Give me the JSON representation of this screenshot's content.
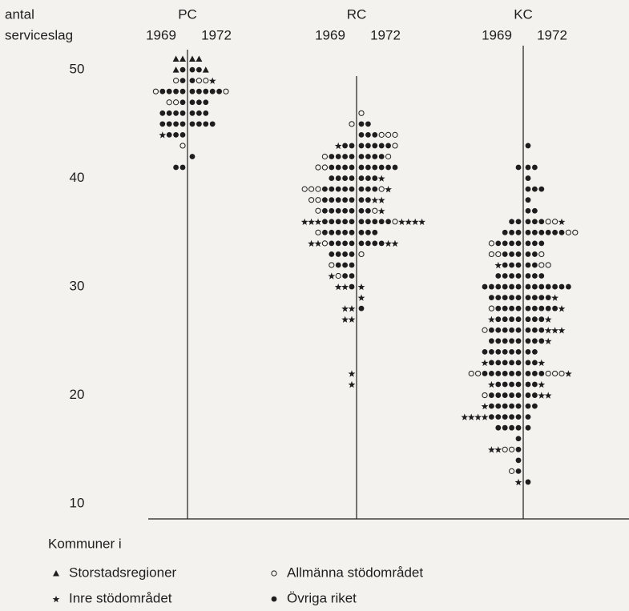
{
  "chart_data": {
    "type": "dotplot",
    "ylabel": [
      "antal",
      "serviceslag"
    ],
    "ylim": [
      8.6,
      52
    ],
    "yticks": [
      10,
      20,
      30,
      40,
      50
    ],
    "legend_title": "Kommuner i",
    "categories": [
      "Storstadsregioner",
      "Inre stödområdet",
      "Allmänna stödområdet",
      "Övriga riket"
    ],
    "color": "#1e1e1e",
    "panels": [
      {
        "name": "PC",
        "years": [
          "1969",
          "1972"
        ],
        "sides": [
          [
            [
              51,
              2,
              0,
              0,
              0
            ],
            [
              50,
              1,
              0,
              0,
              1
            ],
            [
              49,
              0,
              0,
              1,
              1
            ],
            [
              48,
              0,
              0,
              1,
              4
            ],
            [
              47,
              0,
              0,
              2,
              1
            ],
            [
              46,
              0,
              0,
              0,
              4
            ],
            [
              45,
              0,
              0,
              0,
              4
            ],
            [
              44,
              0,
              1,
              0,
              3
            ],
            [
              43,
              0,
              0,
              1,
              0
            ],
            [
              41,
              0,
              0,
              0,
              2
            ]
          ],
          [
            [
              51,
              2,
              0,
              0,
              0
            ],
            [
              50,
              1,
              0,
              0,
              2
            ],
            [
              49,
              0,
              1,
              2,
              1
            ],
            [
              48,
              0,
              0,
              1,
              5
            ],
            [
              47,
              0,
              0,
              0,
              3
            ],
            [
              46,
              0,
              0,
              0,
              3
            ],
            [
              45,
              0,
              0,
              0,
              4
            ],
            [
              42,
              0,
              0,
              0,
              1
            ]
          ]
        ]
      },
      {
        "name": "RC",
        "years": [
          "1969",
          "1972"
        ],
        "sides": [
          [
            [
              45,
              0,
              0,
              1,
              0
            ],
            [
              43,
              0,
              1,
              0,
              2
            ],
            [
              42,
              0,
              0,
              1,
              4
            ],
            [
              41,
              0,
              0,
              2,
              4
            ],
            [
              40,
              0,
              0,
              0,
              4
            ],
            [
              39,
              0,
              0,
              3,
              5
            ],
            [
              38,
              0,
              0,
              2,
              5
            ],
            [
              37,
              0,
              0,
              1,
              5
            ],
            [
              36,
              0,
              3,
              0,
              5
            ],
            [
              35,
              0,
              0,
              1,
              5
            ],
            [
              34,
              0,
              2,
              1,
              4
            ],
            [
              33,
              0,
              0,
              0,
              4
            ],
            [
              32,
              0,
              0,
              1,
              3
            ],
            [
              31,
              0,
              1,
              1,
              2
            ],
            [
              30,
              0,
              2,
              0,
              1
            ],
            [
              28,
              0,
              2,
              0,
              0
            ],
            [
              27,
              0,
              2,
              0,
              0
            ],
            [
              22,
              0,
              1,
              0,
              0
            ],
            [
              21,
              0,
              1,
              0,
              0
            ]
          ],
          [
            [
              46,
              0,
              0,
              1,
              0
            ],
            [
              45,
              0,
              0,
              0,
              2
            ],
            [
              44,
              0,
              0,
              3,
              3
            ],
            [
              43,
              0,
              0,
              1,
              5
            ],
            [
              42,
              0,
              0,
              1,
              4
            ],
            [
              41,
              0,
              0,
              0,
              6
            ],
            [
              40,
              0,
              1,
              0,
              3
            ],
            [
              39,
              0,
              1,
              1,
              3
            ],
            [
              38,
              0,
              2,
              0,
              2
            ],
            [
              37,
              0,
              1,
              1,
              2
            ],
            [
              36,
              0,
              4,
              1,
              5
            ],
            [
              35,
              0,
              0,
              0,
              3
            ],
            [
              34,
              0,
              2,
              0,
              4
            ],
            [
              33,
              0,
              0,
              1,
              0
            ],
            [
              30,
              0,
              1,
              0,
              0
            ],
            [
              29,
              0,
              1,
              0,
              0
            ],
            [
              28,
              0,
              0,
              0,
              1
            ]
          ]
        ]
      },
      {
        "name": "KC",
        "years": [
          "1969",
          "1972"
        ],
        "sides": [
          [
            [
              41,
              0,
              0,
              0,
              1
            ],
            [
              36,
              0,
              0,
              0,
              2
            ],
            [
              35,
              0,
              0,
              0,
              3
            ],
            [
              34,
              0,
              0,
              1,
              4
            ],
            [
              33,
              0,
              0,
              2,
              3
            ],
            [
              32,
              0,
              1,
              0,
              3
            ],
            [
              31,
              0,
              0,
              0,
              4
            ],
            [
              30,
              0,
              0,
              0,
              6
            ],
            [
              29,
              0,
              0,
              0,
              5
            ],
            [
              28,
              0,
              0,
              1,
              4
            ],
            [
              27,
              0,
              1,
              0,
              4
            ],
            [
              26,
              0,
              0,
              1,
              5
            ],
            [
              25,
              0,
              0,
              0,
              5
            ],
            [
              24,
              0,
              0,
              0,
              6
            ],
            [
              23,
              0,
              1,
              0,
              5
            ],
            [
              22,
              0,
              0,
              2,
              6
            ],
            [
              21,
              0,
              1,
              0,
              4
            ],
            [
              20,
              0,
              0,
              1,
              5
            ],
            [
              19,
              0,
              1,
              0,
              5
            ],
            [
              18,
              0,
              4,
              0,
              5
            ],
            [
              17,
              0,
              0,
              0,
              4
            ],
            [
              16,
              0,
              0,
              0,
              1
            ],
            [
              15,
              0,
              2,
              2,
              1
            ],
            [
              14,
              0,
              0,
              0,
              1
            ],
            [
              13,
              0,
              0,
              1,
              1
            ],
            [
              12,
              0,
              1,
              0,
              0
            ]
          ],
          [
            [
              43,
              0,
              0,
              0,
              1
            ],
            [
              41,
              0,
              0,
              0,
              2
            ],
            [
              40,
              0,
              0,
              0,
              1
            ],
            [
              39,
              0,
              0,
              0,
              3
            ],
            [
              38,
              0,
              0,
              0,
              1
            ],
            [
              37,
              0,
              0,
              0,
              2
            ],
            [
              36,
              0,
              1,
              2,
              3
            ],
            [
              35,
              0,
              0,
              2,
              6
            ],
            [
              34,
              0,
              0,
              0,
              3
            ],
            [
              33,
              0,
              0,
              1,
              2
            ],
            [
              32,
              0,
              0,
              2,
              2
            ],
            [
              31,
              0,
              0,
              0,
              3
            ],
            [
              30,
              0,
              0,
              0,
              7
            ],
            [
              29,
              0,
              1,
              0,
              4
            ],
            [
              28,
              0,
              1,
              0,
              5
            ],
            [
              27,
              0,
              1,
              0,
              3
            ],
            [
              26,
              0,
              3,
              0,
              3
            ],
            [
              25,
              0,
              1,
              0,
              3
            ],
            [
              24,
              0,
              0,
              0,
              2
            ],
            [
              23,
              0,
              1,
              0,
              2
            ],
            [
              22,
              0,
              1,
              3,
              3
            ],
            [
              21,
              0,
              1,
              0,
              2
            ],
            [
              20,
              0,
              2,
              0,
              2
            ],
            [
              19,
              0,
              0,
              0,
              2
            ],
            [
              18,
              0,
              0,
              0,
              1
            ],
            [
              17,
              0,
              0,
              0,
              1
            ],
            [
              12,
              0,
              0,
              0,
              1
            ]
          ]
        ]
      }
    ]
  }
}
